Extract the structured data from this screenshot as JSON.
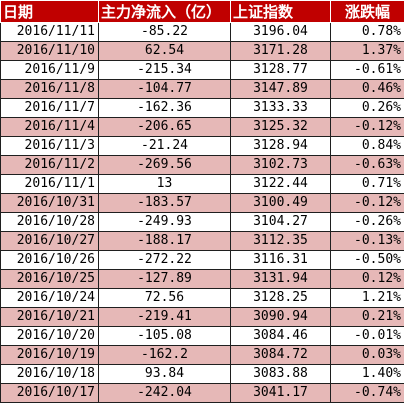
{
  "table": {
    "headers": [
      "日期",
      "主力净流入（亿）",
      "上证指数",
      "涨跌幅"
    ],
    "colors": {
      "header_bg": "#c00000",
      "header_text": "#ffffff",
      "row_pink": "#e6b8b7",
      "row_white": "#ffffff"
    },
    "rows": [
      [
        "2016/11/11",
        "-85.22",
        "3196.04",
        "0.78%"
      ],
      [
        "2016/11/10",
        "62.54",
        "3171.28",
        "1.37%"
      ],
      [
        "2016/11/9",
        "-215.34",
        "3128.77",
        "-0.61%"
      ],
      [
        "2016/11/8",
        "-104.77",
        "3147.89",
        "0.46%"
      ],
      [
        "2016/11/7",
        "-162.36",
        "3133.33",
        "0.26%"
      ],
      [
        "2016/11/4",
        "-206.65",
        "3125.32",
        "-0.12%"
      ],
      [
        "2016/11/3",
        "-21.24",
        "3128.94",
        "0.84%"
      ],
      [
        "2016/11/2",
        "-269.56",
        "3102.73",
        "-0.63%"
      ],
      [
        "2016/11/1",
        "13",
        "3122.44",
        "0.71%"
      ],
      [
        "2016/10/31",
        "-183.57",
        "3100.49",
        "-0.12%"
      ],
      [
        "2016/10/28",
        "-249.93",
        "3104.27",
        "-0.26%"
      ],
      [
        "2016/10/27",
        "-188.17",
        "3112.35",
        "-0.13%"
      ],
      [
        "2016/10/26",
        "-272.22",
        "3116.31",
        "-0.50%"
      ],
      [
        "2016/10/25",
        "-127.89",
        "3131.94",
        "0.12%"
      ],
      [
        "2016/10/24",
        "72.56",
        "3128.25",
        "1.21%"
      ],
      [
        "2016/10/21",
        "-219.41",
        "3090.94",
        "0.21%"
      ],
      [
        "2016/10/20",
        "-105.08",
        "3084.46",
        "-0.01%"
      ],
      [
        "2016/10/19",
        "-162.2",
        "3084.72",
        "0.03%"
      ],
      [
        "2016/10/18",
        "93.84",
        "3083.88",
        "1.40%"
      ],
      [
        "2016/10/17",
        "-242.04",
        "3041.17",
        "-0.74%"
      ]
    ]
  }
}
